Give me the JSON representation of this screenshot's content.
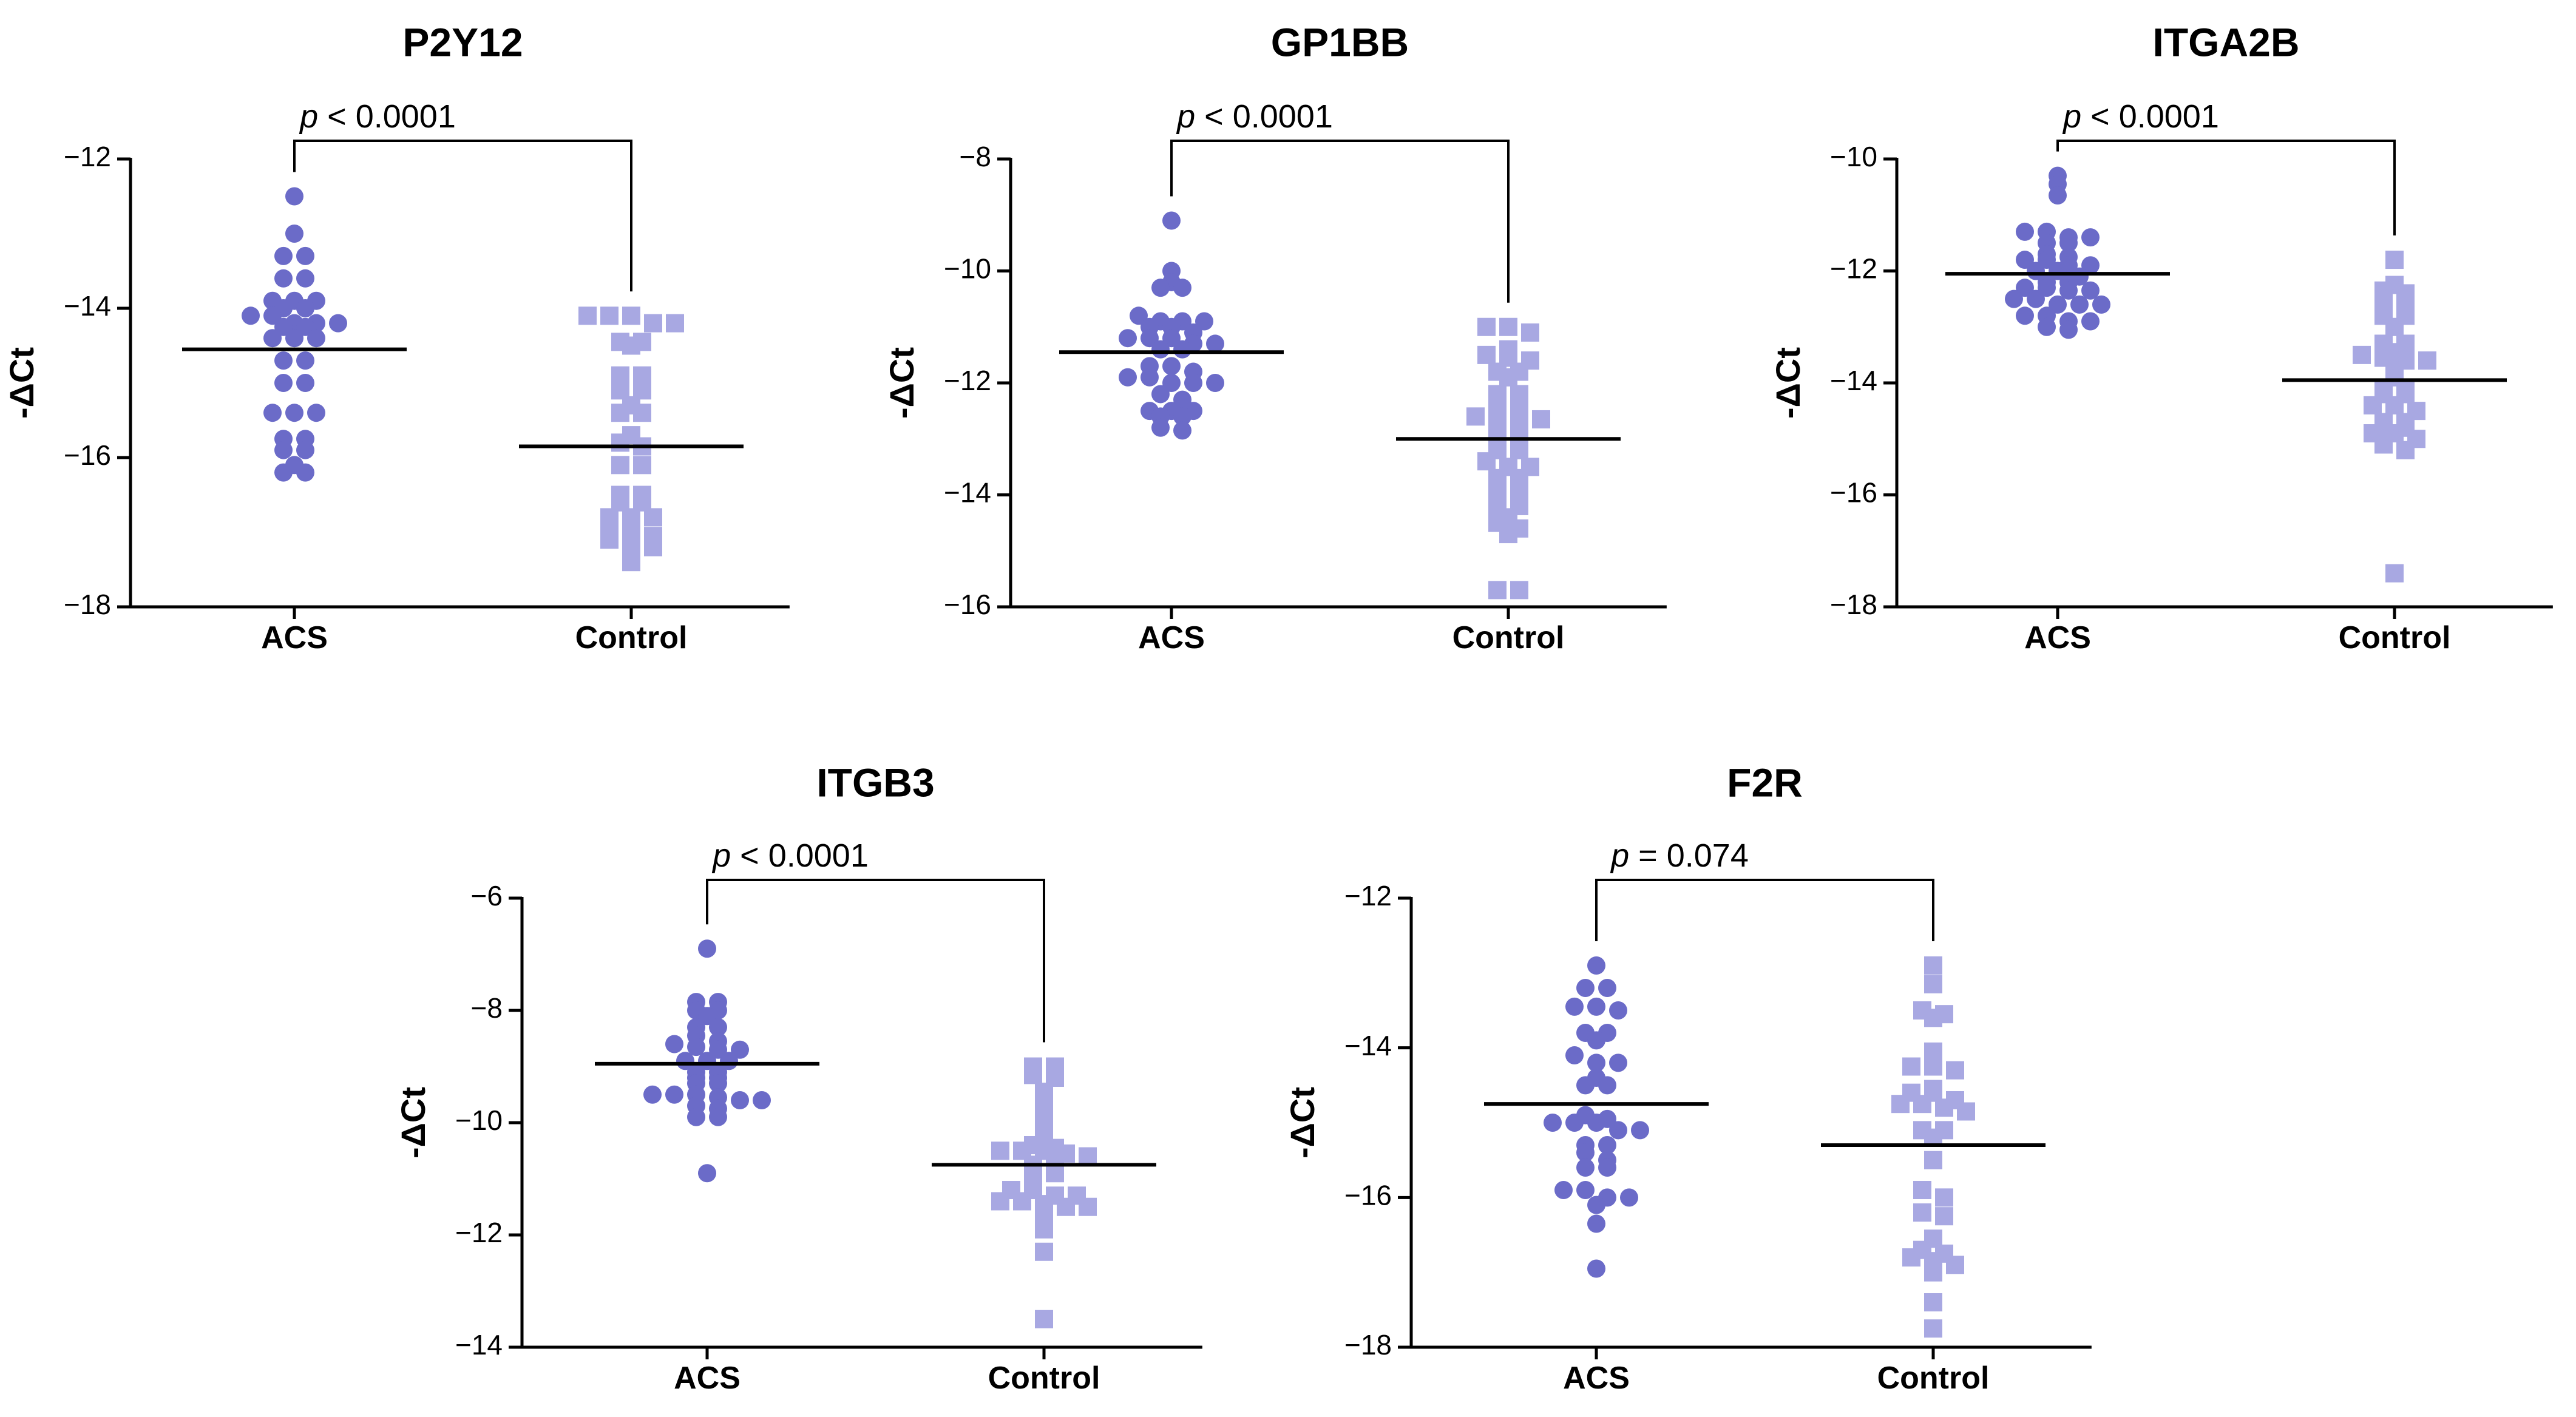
{
  "chart_data": [
    {
      "type": "scatter",
      "title": "P2Y12",
      "ylabel": "-ΔCt",
      "ylim": [
        -18,
        -12
      ],
      "yticks": [
        -12,
        -14,
        -16,
        -18
      ],
      "categories": [
        "ACS",
        "Control"
      ],
      "colors": [
        "#6b6bc8",
        "#a8a8e2"
      ],
      "annotation": {
        "prefix": "p",
        "text": " < 0.0001"
      },
      "means": [
        -14.55,
        -15.85
      ],
      "series": [
        {
          "name": "ACS",
          "marker": "circle",
          "values": [
            -12.5,
            -13.0,
            -13.3,
            -13.3,
            -13.6,
            -13.6,
            -13.9,
            -13.9,
            -13.9,
            -14.0,
            -14.0,
            -14.1,
            -14.1,
            -14.2,
            -14.2,
            -14.2,
            -14.25,
            -14.25,
            -14.4,
            -14.4,
            -14.4,
            -14.7,
            -14.7,
            -15.0,
            -15.0,
            -15.4,
            -15.4,
            -15.4,
            -15.75,
            -15.75,
            -15.9,
            -15.9,
            -16.1,
            -16.2,
            -16.2
          ]
        },
        {
          "name": "Control",
          "marker": "square",
          "values": [
            -14.1,
            -14.1,
            -14.1,
            -14.2,
            -14.2,
            -14.45,
            -14.45,
            -14.5,
            -14.9,
            -14.9,
            -15.1,
            -15.1,
            -15.3,
            -15.4,
            -15.4,
            -15.7,
            -15.8,
            -15.85,
            -16.1,
            -16.1,
            -16.5,
            -16.5,
            -16.6,
            -16.6,
            -16.8,
            -16.8,
            -16.8,
            -17.0,
            -17.0,
            -17.05,
            -17.1,
            -17.2,
            -17.2,
            -17.3,
            -17.4
          ]
        }
      ]
    },
    {
      "type": "scatter",
      "title": "GP1BB",
      "ylabel": "-ΔCt",
      "ylim": [
        -16,
        -8
      ],
      "yticks": [
        -8,
        -10,
        -12,
        -14,
        -16
      ],
      "categories": [
        "ACS",
        "Control"
      ],
      "colors": [
        "#6b6bc8",
        "#a8a8e2"
      ],
      "annotation": {
        "prefix": "p",
        "text": " < 0.0001"
      },
      "means": [
        -11.45,
        -13.0
      ],
      "series": [
        {
          "name": "ACS",
          "marker": "circle",
          "values": [
            -9.1,
            -10.0,
            -10.2,
            -10.3,
            -10.3,
            -10.8,
            -10.9,
            -10.9,
            -10.9,
            -11.0,
            -11.0,
            -11.1,
            -11.2,
            -11.2,
            -11.2,
            -11.3,
            -11.3,
            -11.4,
            -11.4,
            -11.7,
            -11.7,
            -11.8,
            -11.9,
            -11.9,
            -12.0,
            -12.0,
            -12.0,
            -12.2,
            -12.3,
            -12.5,
            -12.5,
            -12.5,
            -12.6,
            -12.6,
            -12.8,
            -12.85
          ]
        },
        {
          "name": "Control",
          "marker": "square",
          "values": [
            -11.0,
            -11.0,
            -11.1,
            -11.4,
            -11.5,
            -11.55,
            -11.6,
            -11.8,
            -11.8,
            -11.9,
            -12.2,
            -12.2,
            -12.5,
            -12.5,
            -12.6,
            -12.6,
            -12.65,
            -12.65,
            -12.9,
            -12.9,
            -13.2,
            -13.2,
            -13.4,
            -13.5,
            -13.5,
            -13.7,
            -13.7,
            -13.9,
            -13.9,
            -14.2,
            -14.2,
            -14.4,
            -14.5,
            -14.6,
            -14.7,
            -15.7,
            -15.7
          ]
        }
      ]
    },
    {
      "type": "scatter",
      "title": "ITGA2B",
      "ylabel": "-ΔCt",
      "ylim": [
        -18,
        -10
      ],
      "yticks": [
        -10,
        -12,
        -14,
        -16,
        -18
      ],
      "categories": [
        "ACS",
        "Control"
      ],
      "colors": [
        "#6b6bc8",
        "#a8a8e2"
      ],
      "annotation": {
        "prefix": "p",
        "text": " < 0.0001"
      },
      "means": [
        -12.05,
        -13.95
      ],
      "series": [
        {
          "name": "ACS",
          "marker": "circle",
          "values": [
            -10.3,
            -10.45,
            -10.65,
            -11.3,
            -11.3,
            -11.4,
            -11.4,
            -11.5,
            -11.5,
            -11.7,
            -11.75,
            -11.8,
            -11.8,
            -11.9,
            -11.9,
            -12.0,
            -12.0,
            -12.1,
            -12.2,
            -12.2,
            -12.3,
            -12.3,
            -12.35,
            -12.35,
            -12.5,
            -12.5,
            -12.6,
            -12.6,
            -12.6,
            -12.8,
            -12.8,
            -12.9,
            -12.9,
            -13.0,
            -13.05
          ]
        },
        {
          "name": "Control",
          "marker": "square",
          "values": [
            -11.8,
            -12.25,
            -12.35,
            -12.4,
            -12.5,
            -12.5,
            -12.8,
            -12.8,
            -13.0,
            -13.3,
            -13.3,
            -13.45,
            -13.5,
            -13.55,
            -13.6,
            -13.6,
            -13.7,
            -13.9,
            -14.1,
            -14.1,
            -14.2,
            -14.2,
            -14.4,
            -14.4,
            -14.5,
            -14.7,
            -14.7,
            -14.8,
            -14.8,
            -14.9,
            -14.9,
            -15.0,
            -15.1,
            -15.2,
            -17.4
          ]
        }
      ]
    },
    {
      "type": "scatter",
      "title": "ITGB3",
      "ylabel": "-ΔCt",
      "ylim": [
        -14,
        -6
      ],
      "yticks": [
        -6,
        -8,
        -10,
        -12,
        -14
      ],
      "categories": [
        "ACS",
        "Control"
      ],
      "colors": [
        "#6b6bc8",
        "#a8a8e2"
      ],
      "annotation": {
        "prefix": "p",
        "text": " < 0.0001"
      },
      "means": [
        -8.95,
        -10.75
      ],
      "series": [
        {
          "name": "ACS",
          "marker": "circle",
          "values": [
            -6.9,
            -7.85,
            -7.85,
            -8.0,
            -8.0,
            -8.1,
            -8.3,
            -8.3,
            -8.45,
            -8.55,
            -8.6,
            -8.65,
            -8.7,
            -8.7,
            -8.9,
            -8.9,
            -8.9,
            -9.1,
            -9.1,
            -9.2,
            -9.2,
            -9.3,
            -9.3,
            -9.5,
            -9.5,
            -9.5,
            -9.55,
            -9.6,
            -9.6,
            -9.7,
            -9.75,
            -9.9,
            -9.9,
            -10.9
          ]
        },
        {
          "name": "Control",
          "marker": "square",
          "values": [
            -9.0,
            -9.0,
            -9.15,
            -9.2,
            -9.45,
            -9.5,
            -9.8,
            -10.05,
            -10.2,
            -10.4,
            -10.45,
            -10.5,
            -10.5,
            -10.5,
            -10.55,
            -10.6,
            -10.75,
            -10.75,
            -10.9,
            -10.9,
            -11.2,
            -11.2,
            -11.3,
            -11.3,
            -11.4,
            -11.4,
            -11.45,
            -11.5,
            -11.5,
            -11.7,
            -11.8,
            -11.9,
            -12.3,
            -13.5
          ]
        }
      ]
    },
    {
      "type": "scatter",
      "title": "F2R",
      "ylabel": "-ΔCt",
      "ylim": [
        -18,
        -12
      ],
      "yticks": [
        -12,
        -14,
        -16,
        -18
      ],
      "categories": [
        "ACS",
        "Control"
      ],
      "colors": [
        "#6b6bc8",
        "#a8a8e2"
      ],
      "annotation": {
        "prefix": "p",
        "text": " = 0.074"
      },
      "means": [
        -14.75,
        -15.3
      ],
      "series": [
        {
          "name": "ACS",
          "marker": "circle",
          "values": [
            -12.9,
            -13.2,
            -13.2,
            -13.45,
            -13.45,
            -13.5,
            -13.8,
            -13.8,
            -13.9,
            -14.1,
            -14.2,
            -14.2,
            -14.4,
            -14.5,
            -14.5,
            -14.9,
            -14.95,
            -15.0,
            -15.0,
            -15.0,
            -15.1,
            -15.1,
            -15.3,
            -15.3,
            -15.4,
            -15.5,
            -15.6,
            -15.6,
            -15.9,
            -15.9,
            -16.0,
            -16.0,
            -16.1,
            -16.35,
            -16.95
          ]
        },
        {
          "name": "Control",
          "marker": "square",
          "values": [
            -12.9,
            -13.15,
            -13.5,
            -13.55,
            -13.6,
            -14.05,
            -14.25,
            -14.25,
            -14.3,
            -14.55,
            -14.6,
            -14.6,
            -14.7,
            -14.75,
            -14.75,
            -14.8,
            -14.85,
            -15.1,
            -15.1,
            -15.2,
            -15.5,
            -15.9,
            -16.0,
            -16.2,
            -16.25,
            -16.55,
            -16.7,
            -16.75,
            -16.8,
            -16.85,
            -16.9,
            -17.0,
            -17.4,
            -17.75
          ]
        }
      ]
    }
  ]
}
